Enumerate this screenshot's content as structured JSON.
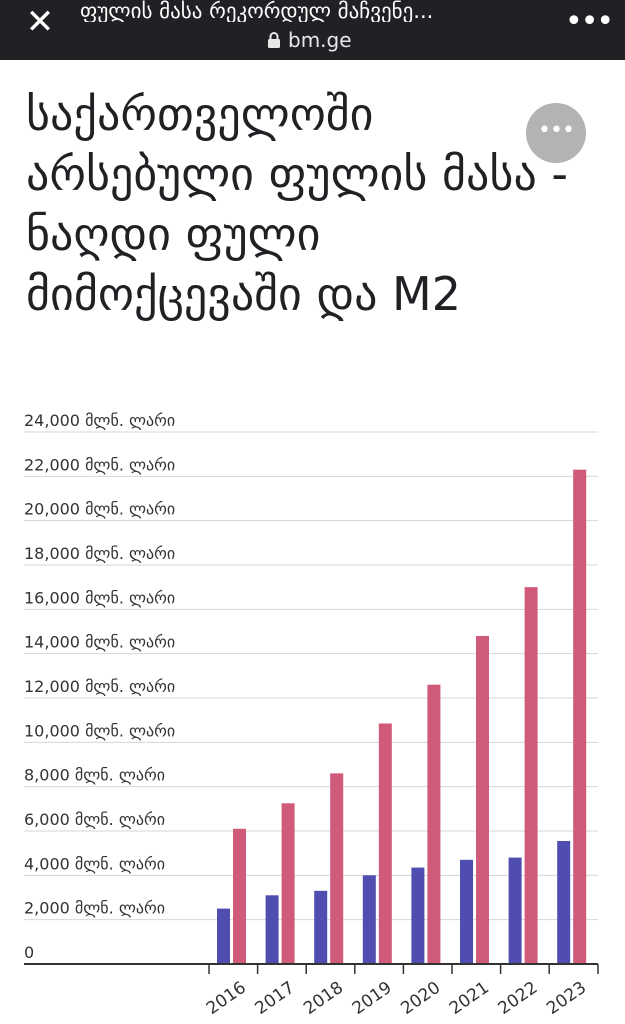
{
  "topbar": {
    "close_icon": "close-icon",
    "title": "ფულის მასა რეკორდულ მაჩვენე...",
    "url": "bm.ge",
    "more_icon": "more-vert-icon"
  },
  "article": {
    "title": "საქართველოში არსებული ფულის მასა - ნაღდი ფული მიმოქცევაში და M2"
  },
  "fab": {
    "label": "•••"
  },
  "chart_data": {
    "type": "bar",
    "categories": [
      "2016",
      "2017",
      "2018",
      "2019",
      "2020",
      "2021",
      "2022",
      "2023"
    ],
    "series": [
      {
        "values": [
          2500,
          3100,
          3300,
          4000,
          4350,
          4700,
          4800,
          5550
        ],
        "color": "#4f4eb0"
      },
      {
        "values": [
          6100,
          7250,
          8600,
          10850,
          12600,
          14800,
          17000,
          22300
        ],
        "color": "#cf5a79"
      }
    ],
    "ylim": [
      0,
      24000
    ],
    "yticks": [
      {
        "value": 0,
        "label": "0"
      },
      {
        "value": 2000,
        "label": "2,000 მლნ. ლარი"
      },
      {
        "value": 4000,
        "label": "4,000 მლნ. ლარი"
      },
      {
        "value": 6000,
        "label": "6,000 მლნ. ლარი"
      },
      {
        "value": 8000,
        "label": "8,000 მლნ. ლარი"
      },
      {
        "value": 10000,
        "label": "10,000 მლნ. ლარი"
      },
      {
        "value": 12000,
        "label": "12,000 მლნ. ლარი"
      },
      {
        "value": 14000,
        "label": "14,000 მლნ. ლარი"
      },
      {
        "value": 16000,
        "label": "16,000 მლნ. ლარი"
      },
      {
        "value": 18000,
        "label": "18,000 მლნ. ლარი"
      },
      {
        "value": 20000,
        "label": "20,000 მლნ. ლარი"
      },
      {
        "value": 22000,
        "label": "22,000 მლნ. ლარი"
      },
      {
        "value": 24000,
        "label": "24,000 მლნ. ლარი"
      }
    ],
    "grid": true
  }
}
